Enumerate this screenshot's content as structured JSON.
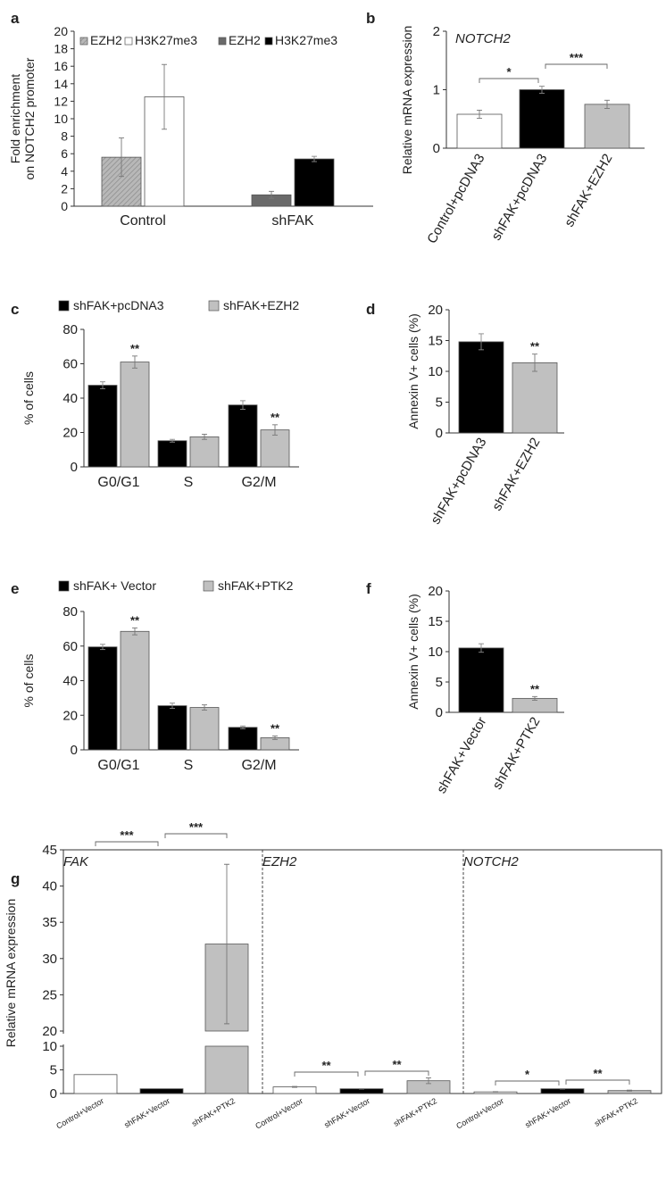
{
  "chart_data": [
    {
      "panel": "a",
      "type": "bar",
      "ylabel": "Fold enrichment\non NOTCH2 promoter",
      "ylim": [
        0,
        20
      ],
      "yticks": [
        0,
        2,
        4,
        6,
        8,
        10,
        12,
        14,
        16,
        18,
        20
      ],
      "categories": [
        "Control",
        "shFAK"
      ],
      "legend": [
        "EZH2",
        "H3K27me3",
        "EZH2",
        "H3K27me3"
      ],
      "legend_placement": "top-left",
      "series": [
        {
          "name": "EZH2",
          "values": [
            5.6,
            null
          ],
          "errors": [
            2.2,
            null
          ],
          "color": "#b5b5b5",
          "pattern": "hatch"
        },
        {
          "name": "H3K27me3",
          "values": [
            12.5,
            null
          ],
          "errors": [
            3.7,
            null
          ],
          "color": "#ffffff"
        },
        {
          "name": "EZH2",
          "values": [
            null,
            1.3
          ],
          "errors": [
            null,
            0.4
          ],
          "color": "#6a6a6a"
        },
        {
          "name": "H3K27me3",
          "values": [
            null,
            5.4
          ],
          "errors": [
            null,
            0.3
          ],
          "color": "#000000"
        }
      ]
    },
    {
      "panel": "b",
      "type": "bar",
      "title": "NOTCH2",
      "ylabel": "Relative mRNA expression",
      "ylim": [
        0,
        2
      ],
      "yticks": [
        0,
        1,
        2
      ],
      "categories": [
        "Control+pcDNA3",
        "shFAK+pcDNA3",
        "shFAK+EZH2"
      ],
      "values": [
        0.58,
        1.0,
        0.75
      ],
      "errors": [
        0.07,
        0.06,
        0.07
      ],
      "colors": [
        "#ffffff",
        "#000000",
        "#c0c0c0"
      ],
      "significance": [
        {
          "from": 0,
          "to": 1,
          "label": "*"
        },
        {
          "from": 1,
          "to": 2,
          "label": "***"
        }
      ]
    },
    {
      "panel": "c",
      "type": "bar",
      "ylabel": "% of cells",
      "ylim": [
        0,
        80
      ],
      "yticks": [
        0,
        20,
        40,
        60,
        80
      ],
      "categories": [
        "G0/G1",
        "S",
        "G2/M"
      ],
      "legend_placement": "top",
      "series": [
        {
          "name": "shFAK+pcDNA3",
          "values": [
            47.5,
            15.2,
            36.0
          ],
          "errors": [
            2.0,
            0.8,
            2.5
          ],
          "color": "#000000"
        },
        {
          "name": "shFAK+EZH2",
          "values": [
            61.0,
            17.5,
            21.5
          ],
          "errors": [
            3.5,
            1.5,
            3.0
          ],
          "color": "#c0c0c0"
        }
      ],
      "significance_labels": [
        "**",
        "",
        "**"
      ]
    },
    {
      "panel": "d",
      "type": "bar",
      "ylabel": "Annexin V+ cells (%)",
      "ylim": [
        0,
        20
      ],
      "yticks": [
        0,
        5,
        10,
        15,
        20
      ],
      "categories": [
        "shFAK+pcDNA3",
        "shFAK+EZH2"
      ],
      "values": [
        14.8,
        11.4
      ],
      "errors": [
        1.3,
        1.4
      ],
      "colors": [
        "#000000",
        "#c0c0c0"
      ],
      "significance_labels": [
        "",
        "**"
      ]
    },
    {
      "panel": "e",
      "type": "bar",
      "ylabel": "% of cells",
      "ylim": [
        0,
        80
      ],
      "yticks": [
        0,
        20,
        40,
        60,
        80
      ],
      "categories": [
        "G0/G1",
        "S",
        "G2/M"
      ],
      "legend_placement": "top",
      "series": [
        {
          "name": "shFAK+ Vector",
          "values": [
            59.5,
            25.5,
            13.0
          ],
          "errors": [
            1.5,
            1.5,
            0.8
          ],
          "color": "#000000"
        },
        {
          "name": "shFAK+PTK2",
          "values": [
            68.5,
            24.5,
            7.0
          ],
          "errors": [
            2.0,
            1.5,
            1.0
          ],
          "color": "#c0c0c0"
        }
      ],
      "significance_labels": [
        "**",
        "",
        "**"
      ]
    },
    {
      "panel": "f",
      "type": "bar",
      "ylabel": "Annexin V+ cells (%)",
      "ylim": [
        0,
        20
      ],
      "yticks": [
        0,
        5,
        10,
        15,
        20
      ],
      "categories": [
        "shFAK+Vector",
        "shFAK+PTK2"
      ],
      "values": [
        10.6,
        2.3
      ],
      "errors": [
        0.7,
        0.3
      ],
      "colors": [
        "#000000",
        "#c0c0c0"
      ],
      "significance_labels": [
        "",
        "**"
      ]
    },
    {
      "panel": "g",
      "type": "bar",
      "ylabel": "Relative mRNA expression",
      "broken_axis": true,
      "yticks_lower": [
        0,
        5,
        10
      ],
      "yticks_upper": [
        20,
        25,
        30,
        35,
        40,
        45
      ],
      "groups": [
        {
          "title": "FAK",
          "categories": [
            "Control+Vector",
            "shFAK+Vector",
            "shFAK+PTK2"
          ],
          "values": [
            4.0,
            1.0,
            32.0
          ],
          "errors": [
            0,
            0,
            11.0
          ],
          "colors": [
            "#ffffff",
            "#000000",
            "#c0c0c0"
          ],
          "significance": [
            {
              "from": 0,
              "to": 1,
              "label": "***"
            },
            {
              "from": 1,
              "to": 2,
              "label": "***"
            }
          ]
        },
        {
          "title": "EZH2",
          "categories": [
            "Control+Vector",
            "shFAK+Vector",
            "shFAK+PTK2"
          ],
          "values": [
            1.4,
            1.0,
            2.7
          ],
          "errors": [
            0.1,
            0.05,
            0.6
          ],
          "colors": [
            "#ffffff",
            "#000000",
            "#c0c0c0"
          ],
          "significance": [
            {
              "from": 0,
              "to": 1,
              "label": "**"
            },
            {
              "from": 1,
              "to": 2,
              "label": "**"
            }
          ]
        },
        {
          "title": "NOTCH2",
          "categories": [
            "Control+Vector",
            "shFAK+Vector",
            "shFAK+PTK2"
          ],
          "values": [
            0.35,
            1.0,
            0.62
          ],
          "errors": [
            0.05,
            0.05,
            0.1
          ],
          "colors": [
            "#ffffff",
            "#000000",
            "#c0c0c0"
          ],
          "significance": [
            {
              "from": 0,
              "to": 1,
              "label": "*"
            },
            {
              "from": 1,
              "to": 2,
              "label": "**"
            }
          ]
        }
      ]
    }
  ],
  "panel_labels": [
    "a",
    "b",
    "c",
    "d",
    "e",
    "f",
    "g"
  ]
}
